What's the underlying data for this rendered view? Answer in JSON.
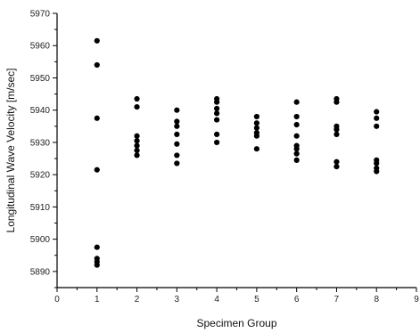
{
  "chart_data": {
    "type": "scatter",
    "xlabel": "Specimen Group",
    "ylabel": "Longitudinal Wave Velocity [m/sec]",
    "xlim": [
      0,
      9
    ],
    "ylim": [
      5885,
      5970
    ],
    "x_ticks": [
      0,
      1,
      2,
      3,
      4,
      5,
      6,
      7,
      8,
      9
    ],
    "y_ticks": [
      5890,
      5900,
      5910,
      5920,
      5930,
      5940,
      5950,
      5960,
      5970
    ],
    "grid": false,
    "marker_color": "#000000",
    "series": [
      {
        "points": [
          [
            1,
            5961.5
          ],
          [
            1,
            5954.0
          ],
          [
            1,
            5937.5
          ],
          [
            1,
            5921.5
          ],
          [
            1,
            5897.5
          ],
          [
            1,
            5894.0
          ],
          [
            1,
            5893.0
          ],
          [
            1,
            5892.0
          ],
          [
            2,
            5943.5
          ],
          [
            2,
            5941.0
          ],
          [
            2,
            5932.0
          ],
          [
            2,
            5930.5
          ],
          [
            2,
            5929.0
          ],
          [
            2,
            5927.5
          ],
          [
            2,
            5926.0
          ],
          [
            3,
            5940.0
          ],
          [
            3,
            5936.5
          ],
          [
            3,
            5935.0
          ],
          [
            3,
            5932.5
          ],
          [
            3,
            5929.5
          ],
          [
            3,
            5926.0
          ],
          [
            3,
            5923.5
          ],
          [
            4,
            5943.5
          ],
          [
            4,
            5942.5
          ],
          [
            4,
            5940.5
          ],
          [
            4,
            5939.0
          ],
          [
            4,
            5937.0
          ],
          [
            4,
            5932.5
          ],
          [
            4,
            5930.0
          ],
          [
            5,
            5938.0
          ],
          [
            5,
            5936.0
          ],
          [
            5,
            5934.5
          ],
          [
            5,
            5933.0
          ],
          [
            5,
            5932.0
          ],
          [
            5,
            5928.0
          ],
          [
            6,
            5942.5
          ],
          [
            6,
            5938.0
          ],
          [
            6,
            5935.5
          ],
          [
            6,
            5932.0
          ],
          [
            6,
            5929.0
          ],
          [
            6,
            5928.0
          ],
          [
            6,
            5926.5
          ],
          [
            6,
            5924.5
          ],
          [
            7,
            5943.5
          ],
          [
            7,
            5942.5
          ],
          [
            7,
            5935.0
          ],
          [
            7,
            5934.0
          ],
          [
            7,
            5932.5
          ],
          [
            7,
            5924.0
          ],
          [
            7,
            5922.5
          ],
          [
            8,
            5939.5
          ],
          [
            8,
            5937.5
          ],
          [
            8,
            5935.0
          ],
          [
            8,
            5924.5
          ],
          [
            8,
            5923.5
          ],
          [
            8,
            5922.0
          ],
          [
            8,
            5921.0
          ]
        ]
      }
    ]
  }
}
